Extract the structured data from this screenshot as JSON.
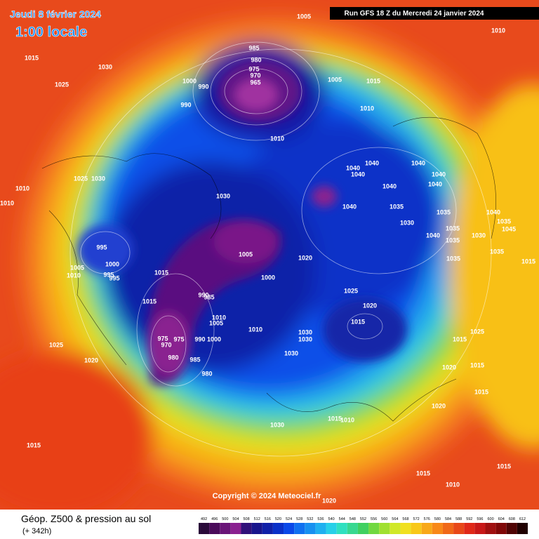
{
  "header": {
    "date": "Jeudi 8 février 2024",
    "time": "1:00 locale",
    "run": "Run GFS 18 Z du Mercredi 24 janvier 2024"
  },
  "footer": {
    "title": "Géop. Z500 & pression au sol",
    "lead": "(+ 342h)",
    "copyright": "Copyright © 2024 Meteociel.fr"
  },
  "legend": {
    "values": [
      492,
      496,
      500,
      504,
      508,
      512,
      516,
      520,
      524,
      528,
      532,
      536,
      540,
      544,
      548,
      552,
      556,
      560,
      564,
      568,
      572,
      576,
      580,
      584,
      588,
      592,
      596,
      600,
      604,
      608,
      612
    ],
    "colors": [
      "#2a0a3a",
      "#4a0a5a",
      "#6a1478",
      "#8a2090",
      "#30107a",
      "#18148c",
      "#1020a8",
      "#0a30c8",
      "#0a48e8",
      "#1070f0",
      "#1890f0",
      "#20b0f0",
      "#28d0e8",
      "#30e0c0",
      "#38d890",
      "#40d060",
      "#70d840",
      "#a0e030",
      "#d0e828",
      "#f0e020",
      "#f8c818",
      "#f8a818",
      "#f88818",
      "#f06818",
      "#e84818",
      "#e02818",
      "#c81818",
      "#a01010",
      "#800808",
      "#500404",
      "#200000"
    ]
  },
  "pressure_labels": [
    1005,
    1010,
    1015,
    1030,
    1025,
    985,
    980,
    975,
    970,
    965,
    1000,
    990,
    990,
    1005,
    1015,
    1010,
    1010,
    1040,
    1040,
    1040,
    1040,
    1040,
    1040,
    1040,
    1040,
    1035,
    1030,
    1035,
    1040,
    1035,
    1045,
    1035,
    1040,
    1030,
    1035,
    1035,
    1035,
    1015,
    1010,
    1010,
    1025,
    1030,
    1030,
    995,
    1005,
    1020,
    1000,
    1005,
    1010,
    995,
    995,
    1015,
    1000,
    1025,
    1015,
    990,
    985,
    1020,
    1015,
    1010,
    1005,
    1010,
    1030,
    1030,
    1025,
    1015,
    975,
    975,
    970,
    990,
    1000,
    1025,
    1030,
    980,
    985,
    1020,
    1020,
    1015,
    980,
    1015,
    1020,
    1015,
    1010,
    1030,
    1015,
    1015,
    1015,
    1010,
    1020
  ]
}
